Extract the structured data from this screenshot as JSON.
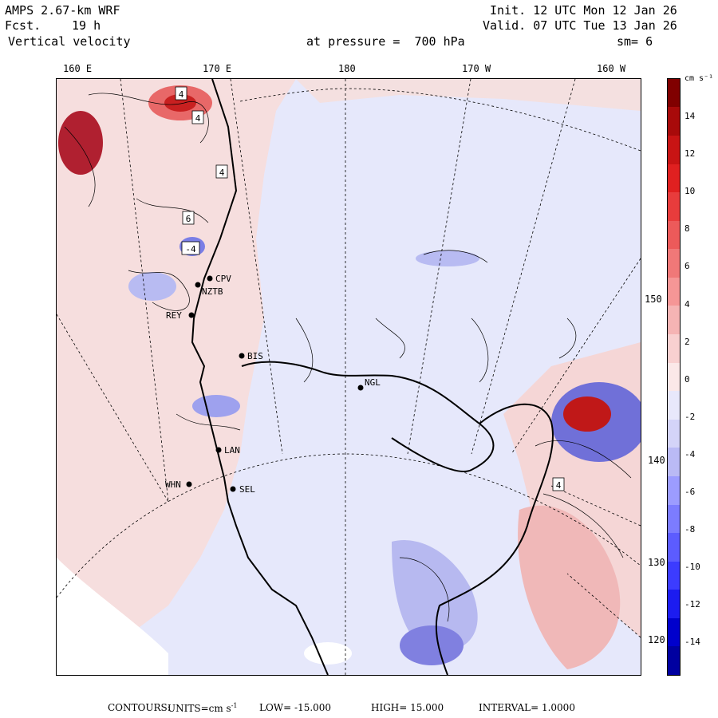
{
  "header": {
    "model": "AMPS 2.67-km WRF",
    "forecast_label": "Fcst.",
    "forecast_hours": "19 h",
    "field": "Vertical velocity",
    "init": "Init. 12 UTC Mon 12 Jan 26",
    "valid": "Valid. 07 UTC Tue 13 Jan 26",
    "pressure_label": "at pressure =  700 hPa",
    "smoothing": "sm= 6"
  },
  "longitude_labels": [
    "160 E",
    "170 E",
    "180",
    "170 W",
    "160 W"
  ],
  "right_labels": [
    "150 W",
    "140 W",
    "130 W",
    "120 W"
  ],
  "colorbar": {
    "units": "cm s⁻¹",
    "ticks": [
      "14",
      "12",
      "10",
      "8",
      "6",
      "4",
      "2",
      "0",
      "-2",
      "-4",
      "-6",
      "-8",
      "-10",
      "-12",
      "-14"
    ],
    "colors": [
      "#0000a0",
      "#0000cc",
      "#1c1cf0",
      "#3c3cff",
      "#5c5cff",
      "#7c7cff",
      "#9c9cff",
      "#babaf5",
      "#d4d4f8",
      "#e8e8fb",
      "#fbe8e8",
      "#f8d0d0",
      "#f5b4b4",
      "#f59696",
      "#f07878",
      "#ec5a5a",
      "#e83c3c",
      "#e02020",
      "#c81414",
      "#a80a0a",
      "#800000"
    ]
  },
  "stations": [
    {
      "code": "CPV"
    },
    {
      "code": "NZTB"
    },
    {
      "code": "REY"
    },
    {
      "code": "BIS"
    },
    {
      "code": "NGL"
    },
    {
      "code": "LAN"
    },
    {
      "code": "WHN"
    },
    {
      "code": "SEL"
    }
  ],
  "contour_labels": [
    "4",
    "4",
    "4",
    "6",
    "-4",
    "4"
  ],
  "footer": {
    "contours": "CONTOURS:",
    "units_prefix": "UNITS=cm s",
    "units_exp": "-1",
    "low": "LOW= -15.000",
    "high": "HIGH=  15.000",
    "interval": "INTERVAL=   1.0000"
  }
}
